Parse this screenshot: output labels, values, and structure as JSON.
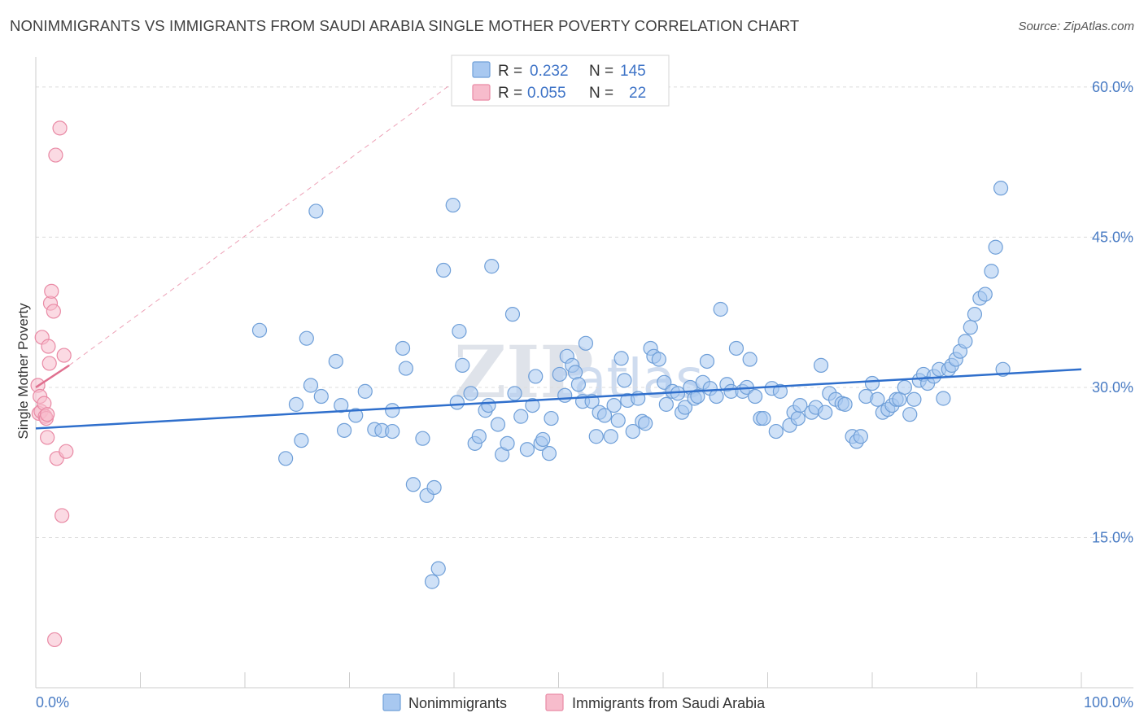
{
  "header": {
    "title": "NONIMMIGRANTS VS IMMIGRANTS FROM SAUDI ARABIA SINGLE MOTHER POVERTY CORRELATION CHART",
    "source": "Source: ZipAtlas.com"
  },
  "watermark": {
    "zip": "ZIP",
    "atlas": "atlas"
  },
  "colors": {
    "blue_fill": "#a8c8f0",
    "blue_stroke": "#6f9fd8",
    "blue_line": "#2f6fcc",
    "pink_fill": "#f7bccc",
    "pink_stroke": "#e98aa5",
    "pink_line": "#e0708f",
    "grid": "#dcdcdc",
    "axis_text": "#4a7cc4"
  },
  "chart_data": {
    "type": "scatter",
    "xlabel": "",
    "ylabel": "Single Mother Poverty",
    "xlim": [
      0,
      100
    ],
    "ylim": [
      0,
      63
    ],
    "x_tick_labels": [
      "0.0%",
      "100.0%"
    ],
    "y_ticks": [
      15,
      30,
      45,
      60
    ],
    "y_tick_labels": [
      "15.0%",
      "30.0%",
      "45.0%",
      "60.0%"
    ],
    "legend": [
      {
        "series": "Nonimmigrants",
        "r_label": "R =",
        "r_value": "0.232",
        "n_label": "N =",
        "n_value": "145"
      },
      {
        "series": "Immigrants from Saudi Arabia",
        "r_label": "R =",
        "r_value": "0.055",
        "n_label": "N =",
        "n_value": "22"
      }
    ],
    "series": [
      {
        "name": "Nonimmigrants",
        "trend": {
          "x": [
            0,
            100
          ],
          "y": [
            25.9,
            31.8
          ]
        },
        "points": [
          [
            21.4,
            35.7
          ],
          [
            23.9,
            22.9
          ],
          [
            24.9,
            28.3
          ],
          [
            25.4,
            24.7
          ],
          [
            25.9,
            34.9
          ],
          [
            26.3,
            30.2
          ],
          [
            26.8,
            47.6
          ],
          [
            27.3,
            29.1
          ],
          [
            28.7,
            32.6
          ],
          [
            29.2,
            28.2
          ],
          [
            29.5,
            25.7
          ],
          [
            30.6,
            27.2
          ],
          [
            31.5,
            29.6
          ],
          [
            32.4,
            25.8
          ],
          [
            33.1,
            25.7
          ],
          [
            34.1,
            27.7
          ],
          [
            34.1,
            25.6
          ],
          [
            35.1,
            33.9
          ],
          [
            35.4,
            31.9
          ],
          [
            36.1,
            20.3
          ],
          [
            37.0,
            24.9
          ],
          [
            37.4,
            19.2
          ],
          [
            37.9,
            10.6
          ],
          [
            38.1,
            20.0
          ],
          [
            38.5,
            11.9
          ],
          [
            39.0,
            41.7
          ],
          [
            39.9,
            48.2
          ],
          [
            40.3,
            28.5
          ],
          [
            40.5,
            35.6
          ],
          [
            40.8,
            32.2
          ],
          [
            41.6,
            29.4
          ],
          [
            42.0,
            24.4
          ],
          [
            42.4,
            25.1
          ],
          [
            43.0,
            27.7
          ],
          [
            43.3,
            28.2
          ],
          [
            43.6,
            42.1
          ],
          [
            44.2,
            26.3
          ],
          [
            44.6,
            23.3
          ],
          [
            45.1,
            24.4
          ],
          [
            45.6,
            37.3
          ],
          [
            45.8,
            29.4
          ],
          [
            46.4,
            27.1
          ],
          [
            47.0,
            23.8
          ],
          [
            47.5,
            28.2
          ],
          [
            47.8,
            31.1
          ],
          [
            48.3,
            24.4
          ],
          [
            48.5,
            24.8
          ],
          [
            49.1,
            23.4
          ],
          [
            49.3,
            26.9
          ],
          [
            50.1,
            31.3
          ],
          [
            50.6,
            29.2
          ],
          [
            50.8,
            33.1
          ],
          [
            51.3,
            32.2
          ],
          [
            51.6,
            31.5
          ],
          [
            51.9,
            30.3
          ],
          [
            52.3,
            28.6
          ],
          [
            52.6,
            34.4
          ],
          [
            53.2,
            28.6
          ],
          [
            53.6,
            25.1
          ],
          [
            53.9,
            27.5
          ],
          [
            54.4,
            27.2
          ],
          [
            55.0,
            25.1
          ],
          [
            55.3,
            28.2
          ],
          [
            55.7,
            26.7
          ],
          [
            56.0,
            32.9
          ],
          [
            56.3,
            30.7
          ],
          [
            56.6,
            28.7
          ],
          [
            57.1,
            25.6
          ],
          [
            57.6,
            28.9
          ],
          [
            58.0,
            26.6
          ],
          [
            58.3,
            26.4
          ],
          [
            58.8,
            33.9
          ],
          [
            59.1,
            33.1
          ],
          [
            59.6,
            32.8
          ],
          [
            60.1,
            30.5
          ],
          [
            60.3,
            28.3
          ],
          [
            60.9,
            29.6
          ],
          [
            61.4,
            29.4
          ],
          [
            61.8,
            27.5
          ],
          [
            62.1,
            28.0
          ],
          [
            62.6,
            30.0
          ],
          [
            63.0,
            28.9
          ],
          [
            63.3,
            29.1
          ],
          [
            63.8,
            30.5
          ],
          [
            64.2,
            32.6
          ],
          [
            64.5,
            29.9
          ],
          [
            65.1,
            29.1
          ],
          [
            65.5,
            37.8
          ],
          [
            66.1,
            30.3
          ],
          [
            66.5,
            29.6
          ],
          [
            67.0,
            33.9
          ],
          [
            67.6,
            29.6
          ],
          [
            68.0,
            30.0
          ],
          [
            68.3,
            32.8
          ],
          [
            68.8,
            29.1
          ],
          [
            69.3,
            26.9
          ],
          [
            69.6,
            26.9
          ],
          [
            70.4,
            29.9
          ],
          [
            70.8,
            25.6
          ],
          [
            71.2,
            29.6
          ],
          [
            72.1,
            26.2
          ],
          [
            72.5,
            27.5
          ],
          [
            72.9,
            26.9
          ],
          [
            73.1,
            28.2
          ],
          [
            74.2,
            27.5
          ],
          [
            74.6,
            28.0
          ],
          [
            75.1,
            32.2
          ],
          [
            75.5,
            27.5
          ],
          [
            75.9,
            29.4
          ],
          [
            76.5,
            28.8
          ],
          [
            77.1,
            28.4
          ],
          [
            77.4,
            28.3
          ],
          [
            78.1,
            25.1
          ],
          [
            78.5,
            24.6
          ],
          [
            78.9,
            25.1
          ],
          [
            79.4,
            29.1
          ],
          [
            80.0,
            30.4
          ],
          [
            80.5,
            28.8
          ],
          [
            81.0,
            27.5
          ],
          [
            81.5,
            27.8
          ],
          [
            81.9,
            28.2
          ],
          [
            82.3,
            28.8
          ],
          [
            82.6,
            28.8
          ],
          [
            83.1,
            30.0
          ],
          [
            83.6,
            27.3
          ],
          [
            84.0,
            28.8
          ],
          [
            84.5,
            30.7
          ],
          [
            84.9,
            31.3
          ],
          [
            85.3,
            30.4
          ],
          [
            85.9,
            31.1
          ],
          [
            86.4,
            31.8
          ],
          [
            86.8,
            28.9
          ],
          [
            87.3,
            31.8
          ],
          [
            87.6,
            32.2
          ],
          [
            88.0,
            32.8
          ],
          [
            88.4,
            33.6
          ],
          [
            88.9,
            34.6
          ],
          [
            89.4,
            36.0
          ],
          [
            89.8,
            37.3
          ],
          [
            90.3,
            38.9
          ],
          [
            90.8,
            39.3
          ],
          [
            91.4,
            41.6
          ],
          [
            91.8,
            44.0
          ],
          [
            92.3,
            49.9
          ],
          [
            92.5,
            31.8
          ]
        ]
      },
      {
        "name": "Immigrants from Saudi Arabia",
        "trend": {
          "x": [
            0,
            3.2
          ],
          "y": [
            30.0,
            32.2
          ]
        },
        "points": [
          [
            0.2,
            30.2
          ],
          [
            0.3,
            27.4
          ],
          [
            0.4,
            29.1
          ],
          [
            0.5,
            27.6
          ],
          [
            0.6,
            35.0
          ],
          [
            0.8,
            28.4
          ],
          [
            0.9,
            27.1
          ],
          [
            1.0,
            26.9
          ],
          [
            1.1,
            25.0
          ],
          [
            1.2,
            34.1
          ],
          [
            1.3,
            32.4
          ],
          [
            1.4,
            38.4
          ],
          [
            1.5,
            39.6
          ],
          [
            1.7,
            37.6
          ],
          [
            1.9,
            53.2
          ],
          [
            2.0,
            22.9
          ],
          [
            2.3,
            55.9
          ],
          [
            2.5,
            17.2
          ],
          [
            2.7,
            33.2
          ],
          [
            2.9,
            23.6
          ],
          [
            1.8,
            4.8
          ],
          [
            1.1,
            27.3
          ]
        ]
      }
    ]
  },
  "bottom_legend": {
    "items": [
      "Nonimmigrants",
      "Immigrants from Saudi Arabia"
    ]
  }
}
